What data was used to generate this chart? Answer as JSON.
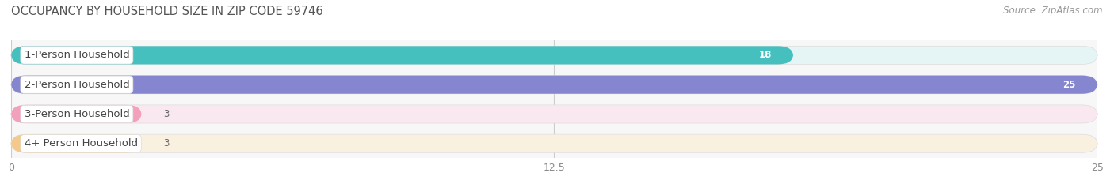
{
  "title": "OCCUPANCY BY HOUSEHOLD SIZE IN ZIP CODE 59746",
  "source": "Source: ZipAtlas.com",
  "categories": [
    "1-Person Household",
    "2-Person Household",
    "3-Person Household",
    "4+ Person Household"
  ],
  "values": [
    18,
    25,
    3,
    3
  ],
  "bar_colors": [
    "#46BFBF",
    "#8585D0",
    "#F2A0BC",
    "#F5C98A"
  ],
  "bar_bg_colors": [
    "#E5F5F5",
    "#E8E8F5",
    "#FAE8F0",
    "#FAF0E0"
  ],
  "xlim": [
    0,
    25
  ],
  "xticks": [
    0,
    12.5,
    25
  ],
  "bar_height": 0.62,
  "bg_color": "#FFFFFF",
  "plot_bg_color": "#F7F7F7",
  "title_fontsize": 10.5,
  "source_fontsize": 8.5,
  "label_fontsize": 9.5,
  "value_fontsize": 8.5,
  "grid_color": "#CCCCCC",
  "tick_color": "#888888"
}
